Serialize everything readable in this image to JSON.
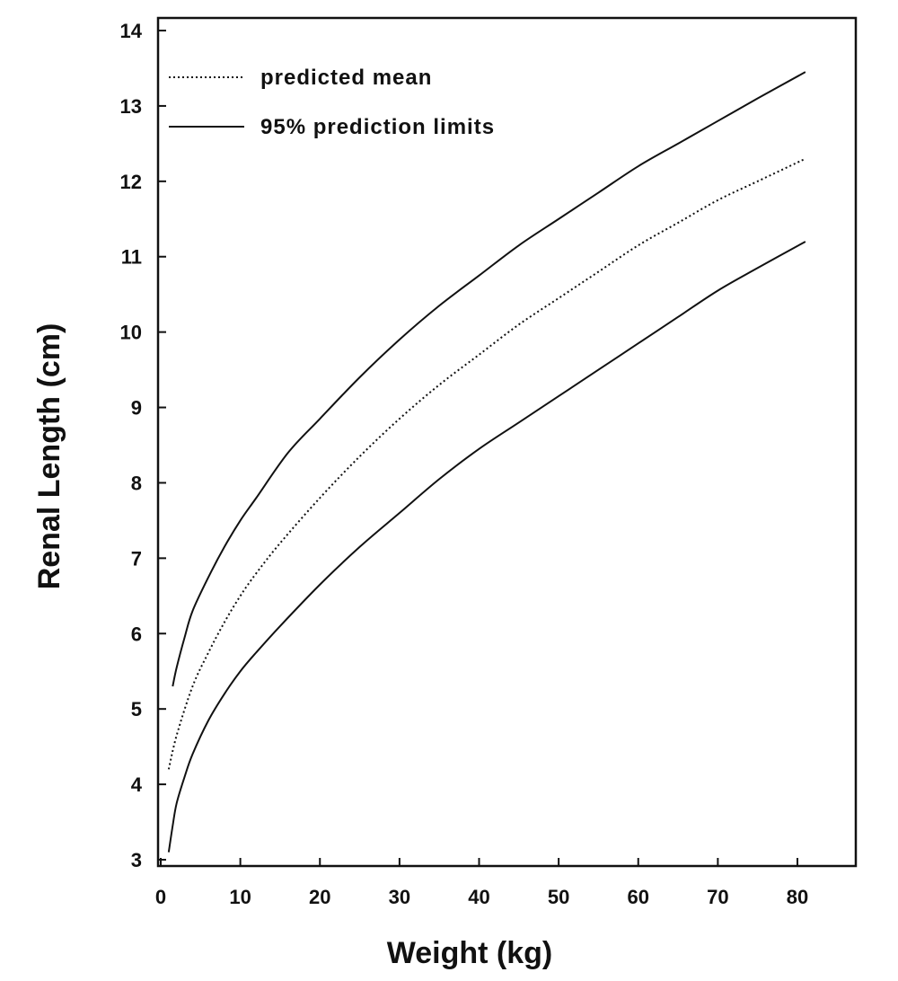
{
  "chart_data": {
    "type": "line",
    "title": "",
    "xlabel": "Weight (kg)",
    "ylabel": "Renal Length (cm)",
    "xlim": [
      0,
      87
    ],
    "ylim": [
      3,
      14
    ],
    "x_ticks": [
      "0",
      "10",
      "20",
      "30",
      "40",
      "50",
      "60",
      "70",
      "80"
    ],
    "y_ticks": [
      "3",
      "4",
      "5",
      "6",
      "7",
      "8",
      "9",
      "10",
      "11",
      "12",
      "13",
      "14"
    ],
    "grid": false,
    "legend": {
      "position": "top-left",
      "entries": [
        {
          "label": "predicted mean",
          "style": "dotted"
        },
        {
          "label": "95% prediction limits",
          "style": "solid"
        }
      ]
    },
    "series": [
      {
        "name": "predicted mean",
        "style": "dotted",
        "x": [
          1,
          2,
          4,
          6,
          8,
          10,
          12,
          15,
          20,
          25,
          30,
          35,
          40,
          45,
          50,
          55,
          60,
          65,
          70,
          75,
          81
        ],
        "y": [
          4.2,
          4.65,
          5.3,
          5.75,
          6.15,
          6.5,
          6.8,
          7.2,
          7.8,
          8.35,
          8.85,
          9.3,
          9.7,
          10.1,
          10.45,
          10.8,
          11.15,
          11.45,
          11.75,
          12.0,
          12.3
        ]
      },
      {
        "name": "95% prediction limits",
        "style": "solid",
        "x": [
          1.5,
          2,
          3,
          4,
          6,
          8,
          10,
          12,
          16,
          20,
          25,
          30,
          35,
          40,
          45,
          50,
          55,
          60,
          65,
          70,
          75,
          81
        ],
        "y": [
          5.3,
          5.55,
          5.95,
          6.3,
          6.75,
          7.15,
          7.5,
          7.8,
          8.4,
          8.85,
          9.4,
          9.9,
          10.35,
          10.75,
          11.15,
          11.5,
          11.85,
          12.2,
          12.5,
          12.8,
          13.1,
          13.45
        ]
      },
      {
        "name": "95% prediction limits",
        "style": "solid",
        "x": [
          1,
          1.5,
          2,
          3,
          4,
          6,
          8,
          10,
          12,
          15,
          20,
          25,
          30,
          35,
          40,
          45,
          50,
          55,
          60,
          65,
          70,
          75,
          81
        ],
        "y": [
          3.1,
          3.45,
          3.75,
          4.1,
          4.4,
          4.85,
          5.2,
          5.5,
          5.75,
          6.1,
          6.65,
          7.15,
          7.6,
          8.05,
          8.45,
          8.8,
          9.15,
          9.5,
          9.85,
          10.2,
          10.55,
          10.85,
          11.2
        ]
      }
    ]
  }
}
